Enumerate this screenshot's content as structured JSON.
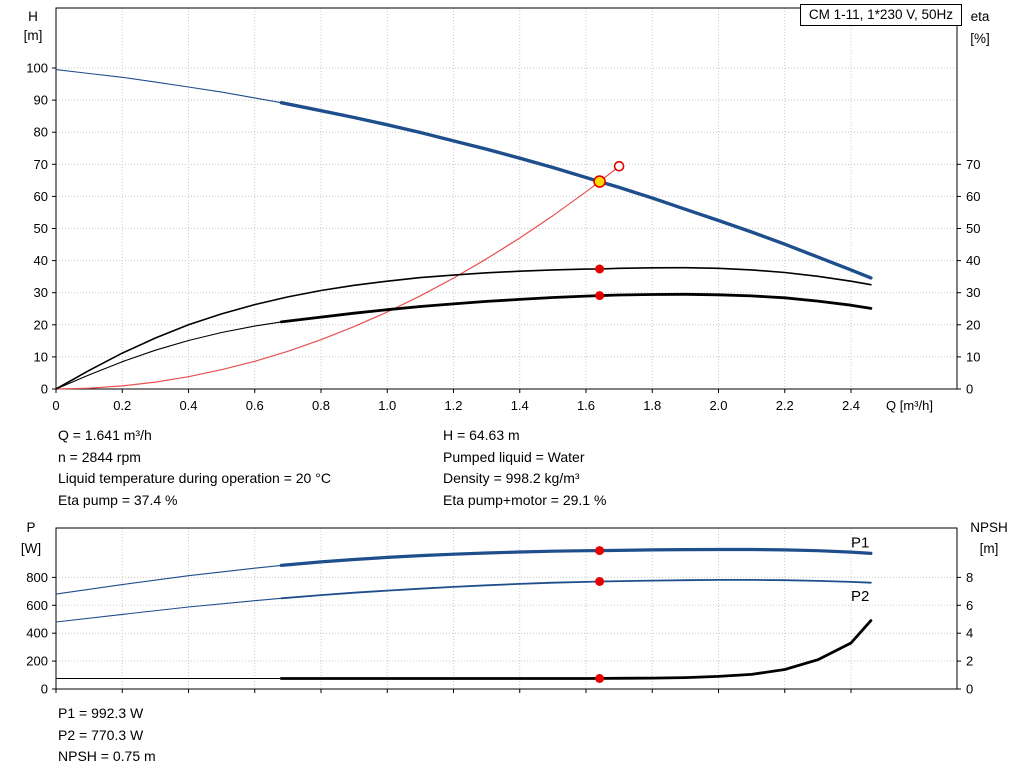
{
  "title_box": "CM 1-11, 1*230 V, 50Hz",
  "colors": {
    "curve_blue": "#1f4e8c",
    "system_red": "#e85050",
    "marker_red": "#e60000",
    "duty_yellow": "#ffd800",
    "black": "#000000"
  },
  "info_top": {
    "col1": [
      "Q = 1.641 m³/h",
      "n = 2844 rpm",
      "Liquid temperature during operation = 20 °C",
      "Eta pump = 37.4 %"
    ],
    "col2": [
      "H = 64.63 m",
      "Pumped liquid = Water",
      "Density = 998.2 kg/m³",
      "Eta pump+motor = 29.1 %"
    ]
  },
  "info_bottom": [
    "P1 = 992.3 W",
    "P2 = 770.3 W",
    "NPSH = 0.75 m"
  ],
  "chart_data": [
    {
      "type": "line",
      "title": "CM 1-11, 1*230 V, 50Hz",
      "x": {
        "min": 0,
        "max": 2.72,
        "label": "Q [m³/h]",
        "ticks": [
          {
            "v": 0,
            "t": "0"
          },
          {
            "v": 0.2,
            "t": "0.2"
          },
          {
            "v": 0.4,
            "t": "0.4"
          },
          {
            "v": 0.6,
            "t": "0.6"
          },
          {
            "v": 0.8,
            "t": "0.8"
          },
          {
            "v": 1.0,
            "t": "1.0"
          },
          {
            "v": 1.2,
            "t": "1.2"
          },
          {
            "v": 1.4,
            "t": "1.4"
          },
          {
            "v": 1.6,
            "t": "1.6"
          },
          {
            "v": 1.8,
            "t": "1.8"
          },
          {
            "v": 2.0,
            "t": "2.0"
          },
          {
            "v": 2.2,
            "t": "2.2"
          },
          {
            "v": 2.4,
            "t": "2.4"
          }
        ]
      },
      "y_left": {
        "min": 0,
        "max": 118.7,
        "label": "H",
        "unit": "[m]",
        "ticks": [
          {
            "v": 0,
            "t": "0"
          },
          {
            "v": 10,
            "t": "10"
          },
          {
            "v": 20,
            "t": "20"
          },
          {
            "v": 30,
            "t": "30"
          },
          {
            "v": 40,
            "t": "40"
          },
          {
            "v": 50,
            "t": "50"
          },
          {
            "v": 60,
            "t": "60"
          },
          {
            "v": 70,
            "t": "70"
          },
          {
            "v": 80,
            "t": "80"
          },
          {
            "v": 90,
            "t": "90"
          },
          {
            "v": 100,
            "t": "100"
          }
        ]
      },
      "y_right": {
        "min": 0,
        "max": 118.7,
        "label": "eta",
        "unit": "[%]",
        "ticks": [
          {
            "v": 0,
            "t": "0"
          },
          {
            "v": 10,
            "t": "10"
          },
          {
            "v": 20,
            "t": "20"
          },
          {
            "v": 30,
            "t": "30"
          },
          {
            "v": 40,
            "t": "40"
          },
          {
            "v": 50,
            "t": "50"
          },
          {
            "v": 60,
            "t": "60"
          },
          {
            "v": 70,
            "t": "70"
          }
        ]
      },
      "series": [
        {
          "name": "system-curve",
          "axis": "left",
          "color": "#e85050",
          "width": 1.2,
          "points": [
            [
              0,
              0
            ],
            [
              0.1,
              0.24
            ],
            [
              0.2,
              0.96
            ],
            [
              0.3,
              2.16
            ],
            [
              0.4,
              3.84
            ],
            [
              0.5,
              6.0
            ],
            [
              0.6,
              8.64
            ],
            [
              0.7,
              11.76
            ],
            [
              0.8,
              15.36
            ],
            [
              0.9,
              19.44
            ],
            [
              1.0,
              24.0
            ],
            [
              1.1,
              29.04
            ],
            [
              1.2,
              34.56
            ],
            [
              1.3,
              40.56
            ],
            [
              1.4,
              47.04
            ],
            [
              1.5,
              54.0
            ],
            [
              1.6,
              61.44
            ],
            [
              1.641,
              64.63
            ],
            [
              1.7,
              69.36
            ]
          ]
        },
        {
          "name": "hq-curve-thin",
          "axis": "left",
          "color": "#1f4e8c",
          "width": 1.1,
          "points": [
            [
              0,
              99.5
            ],
            [
              0.1,
              98.3
            ],
            [
              0.2,
              97.1
            ],
            [
              0.3,
              95.6
            ],
            [
              0.4,
              94.1
            ],
            [
              0.5,
              92.5
            ],
            [
              0.6,
              90.7
            ],
            [
              0.68,
              89.2
            ]
          ]
        },
        {
          "name": "hq-curve",
          "axis": "left",
          "color": "#1f4e8c",
          "width": 3.4,
          "points": [
            [
              0.68,
              89.2
            ],
            [
              0.8,
              86.7
            ],
            [
              0.9,
              84.6
            ],
            [
              1.0,
              82.3
            ],
            [
              1.1,
              79.9
            ],
            [
              1.2,
              77.3
            ],
            [
              1.3,
              74.7
            ],
            [
              1.4,
              71.9
            ],
            [
              1.5,
              69.0
            ],
            [
              1.6,
              65.9
            ],
            [
              1.641,
              64.63
            ],
            [
              1.7,
              62.8
            ],
            [
              1.8,
              59.5
            ],
            [
              1.9,
              56.0
            ],
            [
              2.0,
              52.5
            ],
            [
              2.1,
              48.9
            ],
            [
              2.2,
              45.1
            ],
            [
              2.3,
              41.1
            ],
            [
              2.4,
              37.1
            ],
            [
              2.46,
              34.6
            ]
          ]
        },
        {
          "name": "eta-pump-curve",
          "axis": "left",
          "color": "#000000",
          "width": 1.6,
          "points": [
            [
              0,
              0
            ],
            [
              0.1,
              5.8
            ],
            [
              0.2,
              11.2
            ],
            [
              0.3,
              15.9
            ],
            [
              0.4,
              20.0
            ],
            [
              0.5,
              23.4
            ],
            [
              0.6,
              26.3
            ],
            [
              0.7,
              28.7
            ],
            [
              0.8,
              30.7
            ],
            [
              0.9,
              32.3
            ],
            [
              1.0,
              33.6
            ],
            [
              1.1,
              34.7
            ],
            [
              1.2,
              35.5
            ],
            [
              1.3,
              36.2
            ],
            [
              1.4,
              36.7
            ],
            [
              1.5,
              37.1
            ],
            [
              1.6,
              37.35
            ],
            [
              1.641,
              37.4
            ],
            [
              1.7,
              37.6
            ],
            [
              1.8,
              37.75
            ],
            [
              1.9,
              37.8
            ],
            [
              2.0,
              37.6
            ],
            [
              2.1,
              37.1
            ],
            [
              2.2,
              36.3
            ],
            [
              2.3,
              35.1
            ],
            [
              2.4,
              33.6
            ],
            [
              2.46,
              32.5
            ]
          ]
        },
        {
          "name": "eta-pump-motor-curve-thin",
          "axis": "left",
          "color": "#000000",
          "width": 1.1,
          "points": [
            [
              0,
              0
            ],
            [
              0.1,
              4.4
            ],
            [
              0.2,
              8.5
            ],
            [
              0.3,
              12.1
            ],
            [
              0.4,
              15.1
            ],
            [
              0.5,
              17.6
            ],
            [
              0.6,
              19.6
            ],
            [
              0.68,
              20.9
            ]
          ]
        },
        {
          "name": "eta-pump-motor-curve",
          "axis": "left",
          "color": "#000000",
          "width": 2.8,
          "points": [
            [
              0.68,
              20.9
            ],
            [
              0.8,
              22.4
            ],
            [
              0.9,
              23.6
            ],
            [
              1.0,
              24.7
            ],
            [
              1.1,
              25.7
            ],
            [
              1.2,
              26.5
            ],
            [
              1.3,
              27.3
            ],
            [
              1.4,
              27.9
            ],
            [
              1.5,
              28.5
            ],
            [
              1.6,
              28.95
            ],
            [
              1.641,
              29.1
            ],
            [
              1.7,
              29.3
            ],
            [
              1.8,
              29.45
            ],
            [
              1.9,
              29.5
            ],
            [
              2.0,
              29.35
            ],
            [
              2.1,
              29.0
            ],
            [
              2.2,
              28.4
            ],
            [
              2.3,
              27.4
            ],
            [
              2.4,
              26.1
            ],
            [
              2.46,
              25.1
            ]
          ]
        }
      ],
      "markers": [
        {
          "name": "requested-duty-marker",
          "q": 1.7,
          "v": 69.4,
          "axis": "left",
          "r": 4.5,
          "fill": "#ffffff",
          "stroke": "#e60000"
        },
        {
          "name": "eta-pump-marker",
          "q": 1.641,
          "v": 37.4,
          "axis": "left",
          "r": 4.5,
          "fill": "#e60000"
        },
        {
          "name": "eta-pump-motor-marker",
          "q": 1.641,
          "v": 29.1,
          "axis": "left",
          "r": 4.5,
          "fill": "#e60000"
        },
        {
          "name": "duty-point-marker",
          "q": 1.641,
          "v": 64.63,
          "axis": "left",
          "r": 5.5,
          "fill": "#ffd800",
          "stroke": "#e60000"
        }
      ],
      "labels": []
    },
    {
      "type": "line",
      "x": {
        "min": 0,
        "max": 2.72,
        "label": "",
        "ticks": [
          {
            "v": 0,
            "t": "0"
          },
          {
            "v": 0.2,
            "t": "0.2"
          },
          {
            "v": 0.4,
            "t": "0.4"
          },
          {
            "v": 0.6,
            "t": "0.6"
          },
          {
            "v": 0.8,
            "t": "0.8"
          },
          {
            "v": 1.0,
            "t": "1.0"
          },
          {
            "v": 1.2,
            "t": "1.2"
          },
          {
            "v": 1.4,
            "t": "1.4"
          },
          {
            "v": 1.6,
            "t": "1.6"
          },
          {
            "v": 1.8,
            "t": "1.8"
          },
          {
            "v": 2.0,
            "t": "2.0"
          },
          {
            "v": 2.2,
            "t": "2.2"
          },
          {
            "v": 2.4,
            "t": "2.4"
          }
        ]
      },
      "y_left": {
        "min": 0,
        "max": 1154,
        "label": "P",
        "unit": "[W]",
        "ticks": [
          {
            "v": 0,
            "t": "0"
          },
          {
            "v": 200,
            "t": "200"
          },
          {
            "v": 400,
            "t": "400"
          },
          {
            "v": 600,
            "t": "600"
          },
          {
            "v": 800,
            "t": "800"
          }
        ]
      },
      "y_right": {
        "min": 0,
        "max": 11.54,
        "label": "NPSH",
        "unit": "[m]",
        "ticks": [
          {
            "v": 0,
            "t": "0"
          },
          {
            "v": 2,
            "t": "2"
          },
          {
            "v": 4,
            "t": "4"
          },
          {
            "v": 6,
            "t": "6"
          },
          {
            "v": 8,
            "t": "8"
          }
        ]
      },
      "series": [
        {
          "name": "p1-curve-thin",
          "axis": "left",
          "color": "#1f4e8c",
          "width": 1.1,
          "points": [
            [
              0,
              680
            ],
            [
              0.2,
              748
            ],
            [
              0.4,
              812
            ],
            [
              0.6,
              866
            ],
            [
              0.68,
              886
            ]
          ]
        },
        {
          "name": "p1-curve",
          "axis": "left",
          "color": "#1f4e8c",
          "width": 3.2,
          "points": [
            [
              0.68,
              886
            ],
            [
              0.8,
              911
            ],
            [
              0.9,
              928
            ],
            [
              1.0,
              943
            ],
            [
              1.1,
              956
            ],
            [
              1.2,
              966
            ],
            [
              1.3,
              975
            ],
            [
              1.4,
              982
            ],
            [
              1.5,
              988
            ],
            [
              1.6,
              991.5
            ],
            [
              1.641,
              992.3
            ],
            [
              1.8,
              997
            ],
            [
              1.9,
              999
            ],
            [
              2.0,
              1000
            ],
            [
              2.1,
              1000
            ],
            [
              2.2,
              997
            ],
            [
              2.3,
              991
            ],
            [
              2.4,
              981
            ],
            [
              2.46,
              972
            ]
          ]
        },
        {
          "name": "p2-curve-thin",
          "axis": "left",
          "color": "#1f4e8c",
          "width": 1.1,
          "points": [
            [
              0,
              480
            ],
            [
              0.2,
              535
            ],
            [
              0.4,
              588
            ],
            [
              0.6,
              633
            ],
            [
              0.68,
              650
            ]
          ]
        },
        {
          "name": "p2-curve",
          "axis": "left",
          "color": "#1f4e8c",
          "width": 1.8,
          "points": [
            [
              0.68,
              650
            ],
            [
              0.8,
              673
            ],
            [
              0.9,
              690
            ],
            [
              1.0,
              705
            ],
            [
              1.1,
              719
            ],
            [
              1.2,
              732
            ],
            [
              1.3,
              743
            ],
            [
              1.4,
              753
            ],
            [
              1.5,
              762
            ],
            [
              1.6,
              768
            ],
            [
              1.641,
              770.3
            ],
            [
              1.8,
              777
            ],
            [
              1.9,
              780
            ],
            [
              2.0,
              782
            ],
            [
              2.1,
              782
            ],
            [
              2.2,
              780
            ],
            [
              2.3,
              775
            ],
            [
              2.4,
              768
            ],
            [
              2.46,
              762
            ]
          ]
        },
        {
          "name": "npsh-curve-thin",
          "axis": "right",
          "color": "#000000",
          "width": 1.1,
          "points": [
            [
              0,
              0.75
            ],
            [
              0.68,
              0.75
            ]
          ]
        },
        {
          "name": "npsh-curve",
          "axis": "right",
          "color": "#000000",
          "width": 2.8,
          "points": [
            [
              0.68,
              0.75
            ],
            [
              1.4,
              0.75
            ],
            [
              1.6,
              0.75
            ],
            [
              1.8,
              0.78
            ],
            [
              1.9,
              0.82
            ],
            [
              2.0,
              0.9
            ],
            [
              2.1,
              1.05
            ],
            [
              2.2,
              1.4
            ],
            [
              2.3,
              2.1
            ],
            [
              2.4,
              3.3
            ],
            [
              2.46,
              4.9
            ]
          ]
        }
      ],
      "markers": [
        {
          "name": "p1-marker",
          "q": 1.641,
          "v": 992.3,
          "axis": "left",
          "r": 4.5,
          "fill": "#e60000"
        },
        {
          "name": "p2-marker",
          "q": 1.641,
          "v": 770.3,
          "axis": "left",
          "r": 4.5,
          "fill": "#e60000"
        },
        {
          "name": "npsh-marker",
          "q": 1.641,
          "v": 0.75,
          "axis": "right",
          "r": 4.5,
          "fill": "#e60000"
        }
      ],
      "labels": [
        {
          "text": "P1",
          "q": 2.4,
          "v": 1015,
          "axis": "left",
          "color": "#1f4e8c"
        },
        {
          "text": "P2",
          "q": 2.4,
          "v": 630,
          "axis": "left",
          "color": "#1f4e8c"
        }
      ]
    }
  ]
}
